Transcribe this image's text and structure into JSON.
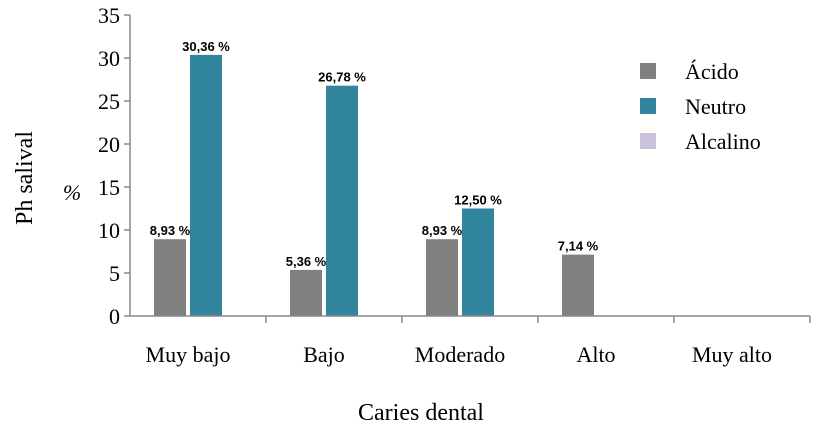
{
  "chart_data": {
    "type": "bar",
    "categories": [
      "Muy bajo",
      "Bajo",
      "Moderado",
      "Alto",
      "Muy alto"
    ],
    "series": [
      {
        "name": "Ácido",
        "color": "#808080",
        "values": [
          8.93,
          5.36,
          8.93,
          7.14,
          null
        ],
        "labels": [
          "8,93 %",
          "5,36 %",
          "8,93 %",
          "7,14 %",
          ""
        ]
      },
      {
        "name": "Neutro",
        "color": "#31859c",
        "values": [
          30.36,
          26.78,
          12.5,
          null,
          null
        ],
        "labels": [
          "30,36 %",
          "26,78 %",
          "12,50 %",
          "",
          ""
        ]
      },
      {
        "name": "Alcalino",
        "color": "#ccc1da",
        "values": [
          null,
          null,
          null,
          null,
          null
        ],
        "labels": [
          "",
          "",
          "",
          "",
          ""
        ]
      }
    ],
    "title": "",
    "xlabel": "Caries dental",
    "ylabel": "Ph salival",
    "yunit": "%",
    "ylim": [
      0,
      35
    ],
    "yticks": [
      0,
      5,
      10,
      15,
      20,
      25,
      30,
      35
    ],
    "grid": false,
    "legend_position": "right"
  }
}
